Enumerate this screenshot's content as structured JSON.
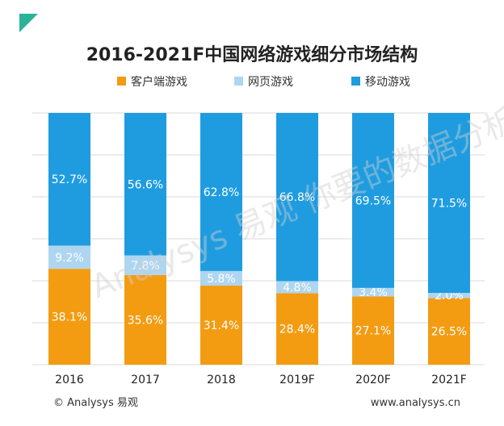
{
  "chart_data": {
    "type": "bar",
    "stacked": true,
    "title": "2016-2021F中国网络游戏细分市场结构",
    "categories": [
      "2016",
      "2017",
      "2018",
      "2019F",
      "2020F",
      "2021F"
    ],
    "series": [
      {
        "name": "客户端游戏",
        "color": "#f39c12",
        "values": [
          38.1,
          35.6,
          31.4,
          28.4,
          27.1,
          26.5
        ]
      },
      {
        "name": "网页游戏",
        "color": "#aed6f1",
        "values": [
          9.2,
          7.8,
          5.8,
          4.8,
          3.4,
          2.0
        ]
      },
      {
        "name": "移动游戏",
        "color": "#1f9ce0",
        "values": [
          52.7,
          56.6,
          62.8,
          66.8,
          69.5,
          71.5
        ]
      }
    ],
    "ylim": [
      0,
      100
    ],
    "legend_position": "top",
    "grid": true,
    "data_labels": true
  },
  "source": {
    "left": "© Analysys 易观",
    "right": "www.analysys.cn"
  },
  "watermark": "Analysys 易观  你要的数据分析"
}
